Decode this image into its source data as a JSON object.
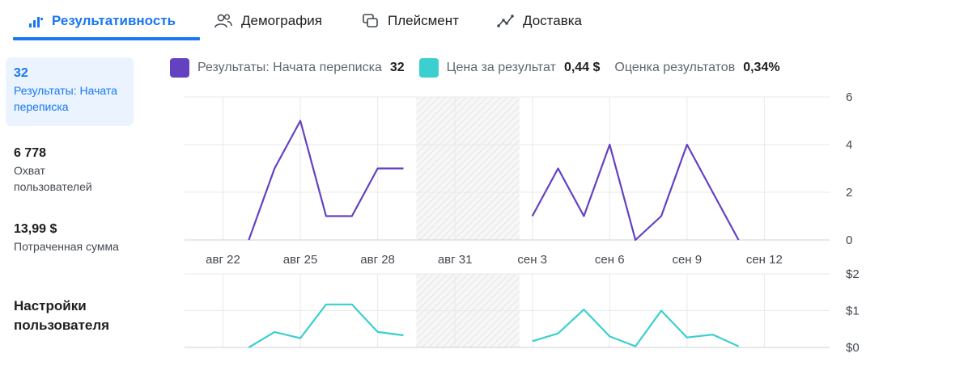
{
  "tabs": [
    {
      "label": "Результативность",
      "icon": "bar-chart-icon",
      "active": true
    },
    {
      "label": "Демография",
      "icon": "people-icon"
    },
    {
      "label": "Плейсмент",
      "icon": "placement-icon"
    },
    {
      "label": "Доставка",
      "icon": "delivery-trend-icon"
    }
  ],
  "sidebar": {
    "metrics": [
      {
        "value": "32",
        "label": "Результаты: Начата переписка",
        "active": true
      },
      {
        "value": "6 778",
        "label": "Охват пользователей"
      },
      {
        "value": "13,99 $",
        "label": "Потраченная сумма"
      }
    ],
    "settings_label": "Настройки пользователя"
  },
  "legend": [
    {
      "name": "Результаты: Начата переписка",
      "value": "32",
      "color": "#6441c1"
    },
    {
      "name": "Цена за результат",
      "value": "0,44 $",
      "color": "#3ccfcf"
    },
    {
      "name": "Оценка результатов",
      "value": "0,34%"
    }
  ],
  "chart_data": [
    {
      "type": "line",
      "series": [
        {
          "name": "Результаты: Начата переписка",
          "color": "#6441c1",
          "values": [
            null,
            0,
            3,
            5,
            1,
            1,
            3,
            3,
            null,
            null,
            null,
            null,
            1,
            3,
            1,
            4,
            0,
            1,
            4,
            2,
            0,
            null,
            null,
            null,
            null
          ]
        }
      ],
      "x": [
        "авг 22",
        "авг 23",
        "авг 24",
        "авг 25",
        "авг 26",
        "авг 27",
        "авг 28",
        "авг 29",
        "авг 30",
        "авг 31",
        "сен 1",
        "сен 2",
        "сен 3",
        "сен 4",
        "сен 5",
        "сен 6",
        "сен 7",
        "сен 8",
        "сен 9",
        "сен 10",
        "сен 11",
        "сен 12",
        "сен 13",
        "сен 14",
        "сен 15"
      ],
      "x_tick_labels": [
        "авг 22",
        "авг 25",
        "авг 28",
        "авг 31",
        "сен 3",
        "сен 6",
        "сен 9",
        "сен 12"
      ],
      "y_ticks": [
        "0",
        "2",
        "4",
        "6"
      ],
      "ylim": [
        0,
        6
      ],
      "no_data_range": [
        "авг 30",
        "сен 2"
      ],
      "grid": true
    },
    {
      "type": "line",
      "series": [
        {
          "name": "Цена за результат",
          "color": "#3ccfcf",
          "values": [
            null,
            0,
            0.42,
            0.25,
            1.17,
            1.17,
            0.42,
            0.33,
            null,
            null,
            null,
            null,
            0.17,
            0.38,
            1.03,
            0.3,
            0.03,
            1.0,
            0.27,
            0.35,
            0.03,
            null,
            null,
            null,
            null
          ]
        }
      ],
      "y_ticks": [
        "$0",
        "$1",
        "$2"
      ],
      "ylim": [
        0,
        2
      ],
      "grid": true
    }
  ]
}
